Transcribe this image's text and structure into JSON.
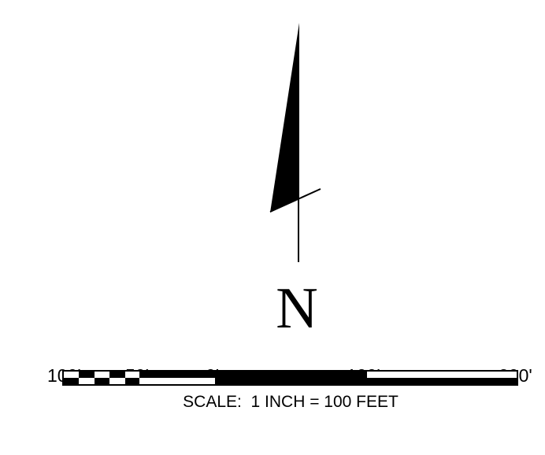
{
  "north_arrow": {
    "letter": "N",
    "icon": "north-arrow-icon"
  },
  "scale_bar": {
    "tick_labels": [
      "100'",
      "50'",
      "0'",
      "100'",
      "200'"
    ],
    "caption": "SCALE:  1 INCH = 100 FEET",
    "colors": {
      "fill": "#000000",
      "background": "#ffffff"
    }
  }
}
